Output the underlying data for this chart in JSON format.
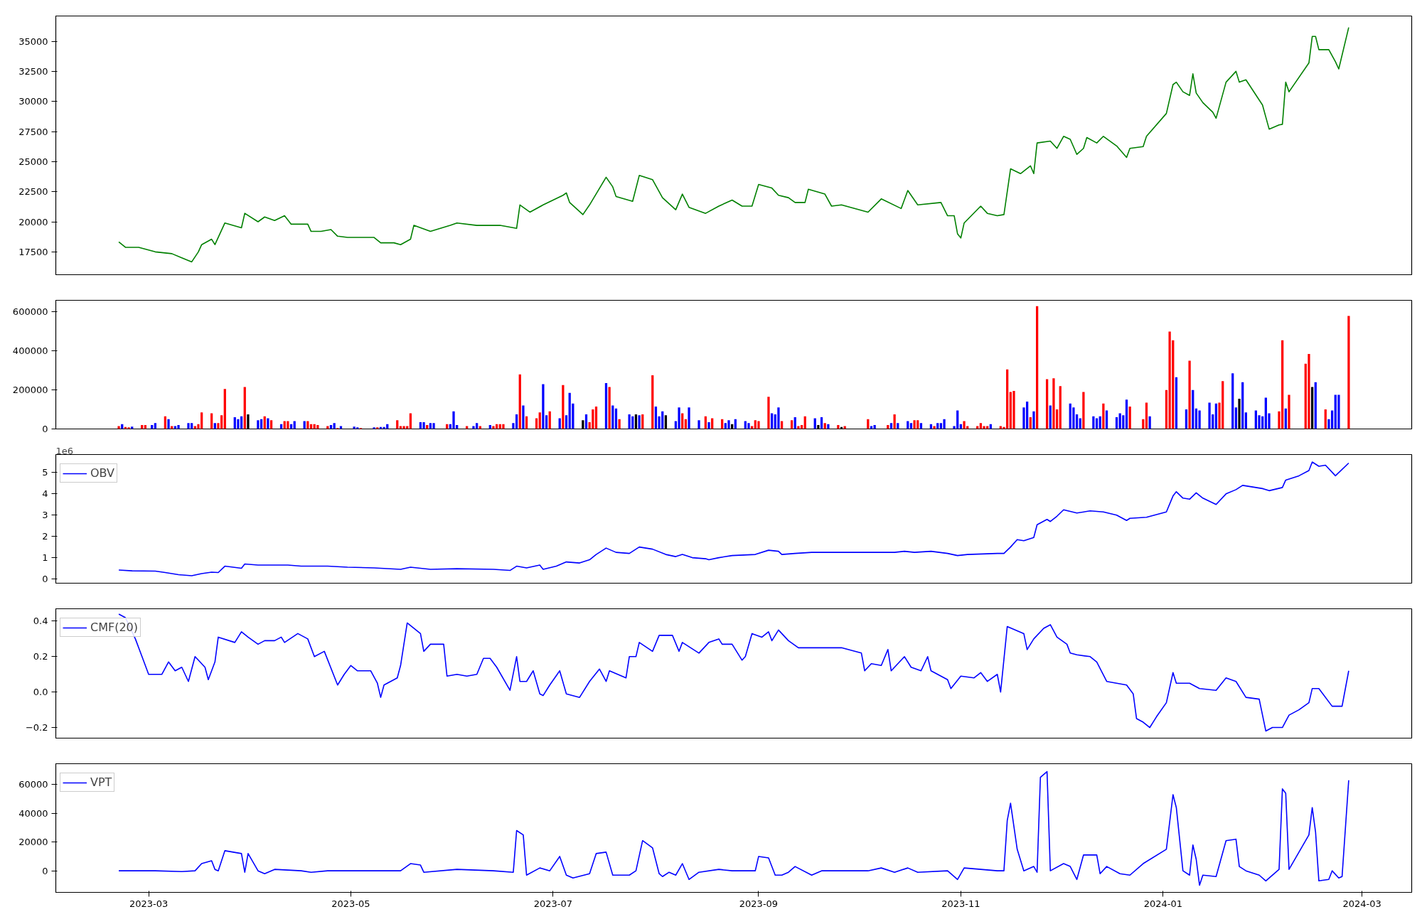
{
  "chart_data": [
    {
      "type": "line",
      "tick_labels": "y",
      "xlim": [
        "2023-02-01",
        "2024-03-16"
      ],
      "ylim": [
        15600,
        37100
      ],
      "yticks": [
        17500,
        20000,
        22500,
        25000,
        27500,
        30000,
        32500,
        35000
      ],
      "x": [
        "2023-02-20",
        "2023-02-22",
        "2023-02-26",
        "2023-03-03",
        "2023-03-08",
        "2023-03-11",
        "2023-03-14",
        "2023-03-16",
        "2023-03-17",
        "2023-03-20",
        "2023-03-21",
        "2023-03-24",
        "2023-03-29",
        "2023-03-30",
        "2023-04-03",
        "2023-04-05",
        "2023-04-08",
        "2023-04-11",
        "2023-04-13",
        "2023-04-18",
        "2023-04-19",
        "2023-04-22",
        "2023-04-25",
        "2023-04-27",
        "2023-04-30",
        "2023-05-08",
        "2023-05-10",
        "2023-05-14",
        "2023-05-16",
        "2023-05-19",
        "2023-05-20",
        "2023-05-25",
        "2023-05-31",
        "2023-06-02",
        "2023-06-08",
        "2023-06-15",
        "2023-06-20",
        "2023-06-21",
        "2023-06-24",
        "2023-06-28",
        "2023-07-04",
        "2023-07-05",
        "2023-07-06",
        "2023-07-10",
        "2023-07-12",
        "2023-07-17",
        "2023-07-19",
        "2023-07-20",
        "2023-07-25",
        "2023-07-27",
        "2023-07-31",
        "2023-08-03",
        "2023-08-07",
        "2023-08-09",
        "2023-08-11",
        "2023-08-16",
        "2023-08-20",
        "2023-08-24",
        "2023-08-27",
        "2023-08-30",
        "2023-09-01",
        "2023-09-05",
        "2023-09-07",
        "2023-09-10",
        "2023-09-12",
        "2023-09-15",
        "2023-09-16",
        "2023-09-21",
        "2023-09-23",
        "2023-09-26",
        "2023-10-04",
        "2023-10-08",
        "2023-10-14",
        "2023-10-16",
        "2023-10-19",
        "2023-10-26",
        "2023-10-28",
        "2023-10-30",
        "2023-10-31",
        "2023-11-01",
        "2023-11-02",
        "2023-11-07",
        "2023-11-09",
        "2023-11-12",
        "2023-11-14",
        "2023-11-16",
        "2023-11-19",
        "2023-11-22",
        "2023-11-23",
        "2023-11-24",
        "2023-11-28",
        "2023-11-30",
        "2023-12-02",
        "2023-12-04",
        "2023-12-06",
        "2023-12-08",
        "2023-12-09",
        "2023-12-12",
        "2023-12-14",
        "2023-12-18",
        "2023-12-21",
        "2023-12-22",
        "2023-12-26",
        "2023-12-27",
        "2024-01-02",
        "2024-01-04",
        "2024-01-05",
        "2024-01-07",
        "2024-01-09",
        "2024-01-10",
        "2024-01-11",
        "2024-01-13",
        "2024-01-16",
        "2024-01-17",
        "2024-01-20",
        "2024-01-23",
        "2024-01-24",
        "2024-01-26",
        "2024-01-31",
        "2024-02-02",
        "2024-02-05",
        "2024-02-06",
        "2024-02-07",
        "2024-02-08",
        "2024-02-14",
        "2024-02-15",
        "2024-02-16",
        "2024-02-17",
        "2024-02-20",
        "2024-02-22",
        "2024-02-23",
        "2024-02-26"
      ],
      "series": [
        {
          "color": "#008000",
          "values": [
            18330,
            17880,
            17870,
            17500,
            17350,
            17000,
            16670,
            17500,
            18100,
            18550,
            18100,
            19900,
            19500,
            20700,
            20000,
            20400,
            20100,
            20500,
            19800,
            19800,
            19200,
            19200,
            19350,
            18800,
            18700,
            18700,
            18250,
            18250,
            18100,
            18550,
            19700,
            19200,
            19700,
            19900,
            19700,
            19700,
            19450,
            21400,
            20800,
            21400,
            22200,
            22400,
            21600,
            20600,
            21400,
            23700,
            22900,
            22100,
            21700,
            23850,
            23500,
            22000,
            21000,
            22300,
            21200,
            20700,
            21300,
            21800,
            21300,
            21300,
            23100,
            22800,
            22200,
            22000,
            21600,
            21600,
            22700,
            22300,
            21300,
            21400,
            20800,
            21900,
            21100,
            22600,
            21400,
            21600,
            20500,
            20500,
            19000,
            18650,
            19900,
            21300,
            20700,
            20500,
            20600,
            24400,
            24000,
            24650,
            24000,
            26550,
            26700,
            26100,
            27100,
            26850,
            25600,
            26100,
            27000,
            26550,
            27100,
            26300,
            25350,
            26100,
            26250,
            27100,
            29000,
            31400,
            31600,
            30800,
            30500,
            32300,
            30700,
            29900,
            29100,
            28600,
            31600,
            32500,
            31600,
            31800,
            29700,
            27700,
            28050,
            28100,
            31600,
            30800,
            33200,
            35400,
            35400,
            34300,
            34300,
            33300,
            32700,
            36150
          ]
        }
      ]
    },
    {
      "type": "bar",
      "tick_labels": "y",
      "xlim": [
        "2023-02-01",
        "2024-03-16"
      ],
      "ylim": [
        0,
        660000
      ],
      "yticks": [
        0,
        200000,
        400000,
        600000
      ],
      "x": [
        "2023-02-20",
        "2023-02-21",
        "2023-02-22",
        "2023-02-23",
        "2023-02-24",
        "2023-02-27",
        "2023-02-28",
        "2023-03-02",
        "2023-03-03",
        "2023-03-06",
        "2023-03-07",
        "2023-03-08",
        "2023-03-09",
        "2023-03-10",
        "2023-03-13",
        "2023-03-14",
        "2023-03-15",
        "2023-03-16",
        "2023-03-17",
        "2023-03-20",
        "2023-03-21",
        "2023-03-22",
        "2023-03-23",
        "2023-03-24",
        "2023-03-27",
        "2023-03-28",
        "2023-03-29",
        "2023-03-30",
        "2023-03-31",
        "2023-04-03",
        "2023-04-04",
        "2023-04-05",
        "2023-04-06",
        "2023-04-07",
        "2023-04-10",
        "2023-04-11",
        "2023-04-12",
        "2023-04-13",
        "2023-04-14",
        "2023-04-17",
        "2023-04-18",
        "2023-04-19",
        "2023-04-20",
        "2023-04-21",
        "2023-04-24",
        "2023-04-25",
        "2023-04-26",
        "2023-04-27",
        "2023-04-28",
        "2023-05-02",
        "2023-05-03",
        "2023-05-04",
        "2023-05-08",
        "2023-05-09",
        "2023-05-10",
        "2023-05-11",
        "2023-05-12",
        "2023-05-15",
        "2023-05-16",
        "2023-05-17",
        "2023-05-18",
        "2023-05-19",
        "2023-05-22",
        "2023-05-23",
        "2023-05-24",
        "2023-05-25",
        "2023-05-26",
        "2023-05-30",
        "2023-05-31",
        "2023-06-01",
        "2023-06-02",
        "2023-06-05",
        "2023-06-07",
        "2023-06-08",
        "2023-06-09",
        "2023-06-12",
        "2023-06-13",
        "2023-06-14",
        "2023-06-15",
        "2023-06-16",
        "2023-06-19",
        "2023-06-20",
        "2023-06-21",
        "2023-06-22",
        "2023-06-23",
        "2023-06-26",
        "2023-06-27",
        "2023-06-28",
        "2023-06-29",
        "2023-06-30",
        "2023-07-03",
        "2023-07-04",
        "2023-07-05",
        "2023-07-06",
        "2023-07-07",
        "2023-07-10",
        "2023-07-11",
        "2023-07-12",
        "2023-07-13",
        "2023-07-14",
        "2023-07-17",
        "2023-07-18",
        "2023-07-19",
        "2023-07-20",
        "2023-07-21",
        "2023-07-24",
        "2023-07-25",
        "2023-07-26",
        "2023-07-27",
        "2023-07-28",
        "2023-07-31",
        "2023-08-01",
        "2023-08-02",
        "2023-08-03",
        "2023-08-04",
        "2023-08-07",
        "2023-08-08",
        "2023-08-09",
        "2023-08-10",
        "2023-08-11",
        "2023-08-14",
        "2023-08-16",
        "2023-08-17",
        "2023-08-18",
        "2023-08-21",
        "2023-08-22",
        "2023-08-23",
        "2023-08-24",
        "2023-08-25",
        "2023-08-28",
        "2023-08-29",
        "2023-08-30",
        "2023-08-31",
        "2023-09-01",
        "2023-09-04",
        "2023-09-05",
        "2023-09-06",
        "2023-09-07",
        "2023-09-08",
        "2023-09-11",
        "2023-09-12",
        "2023-09-13",
        "2023-09-14",
        "2023-09-15",
        "2023-09-18",
        "2023-09-19",
        "2023-09-20",
        "2023-09-21",
        "2023-09-22",
        "2023-09-25",
        "2023-09-26",
        "2023-09-27",
        "2023-10-04",
        "2023-10-05",
        "2023-10-06",
        "2023-10-10",
        "2023-10-11",
        "2023-10-12",
        "2023-10-13",
        "2023-10-16",
        "2023-10-17",
        "2023-10-18",
        "2023-10-19",
        "2023-10-20",
        "2023-10-23",
        "2023-10-24",
        "2023-10-25",
        "2023-10-26",
        "2023-10-27",
        "2023-10-30",
        "2023-10-31",
        "2023-11-01",
        "2023-11-02",
        "2023-11-03",
        "2023-11-06",
        "2023-11-07",
        "2023-11-08",
        "2023-11-09",
        "2023-11-10",
        "2023-11-13",
        "2023-11-14",
        "2023-11-15",
        "2023-11-16",
        "2023-11-17",
        "2023-11-20",
        "2023-11-21",
        "2023-11-22",
        "2023-11-23",
        "2023-11-24",
        "2023-11-27",
        "2023-11-28",
        "2023-11-29",
        "2023-11-30",
        "2023-12-01",
        "2023-12-04",
        "2023-12-05",
        "2023-12-06",
        "2023-12-07",
        "2023-12-08",
        "2023-12-11",
        "2023-12-12",
        "2023-12-13",
        "2023-12-14",
        "2023-12-15",
        "2023-12-18",
        "2023-12-19",
        "2023-12-20",
        "2023-12-21",
        "2023-12-22",
        "2023-12-26",
        "2023-12-27",
        "2023-12-28",
        "2024-01-02",
        "2024-01-03",
        "2024-01-04",
        "2024-01-05",
        "2024-01-08",
        "2024-01-09",
        "2024-01-10",
        "2024-01-11",
        "2024-01-12",
        "2024-01-15",
        "2024-01-16",
        "2024-01-17",
        "2024-01-18",
        "2024-01-19",
        "2024-01-22",
        "2024-01-23",
        "2024-01-24",
        "2024-01-25",
        "2024-01-26",
        "2024-01-29",
        "2024-01-30",
        "2024-01-31",
        "2024-02-01",
        "2024-02-02",
        "2024-02-05",
        "2024-02-06",
        "2024-02-07",
        "2024-02-08",
        "2024-02-13",
        "2024-02-14",
        "2024-02-15",
        "2024-02-16",
        "2024-02-19",
        "2024-02-20",
        "2024-02-21",
        "2024-02-22",
        "2024-02-23",
        "2024-02-26"
      ],
      "values": [
        15000,
        25000,
        10000,
        8000,
        12000,
        20000,
        20000,
        20000,
        30000,
        65000,
        50000,
        15000,
        15000,
        20000,
        30000,
        30000,
        15000,
        25000,
        85000,
        80000,
        30000,
        30000,
        70000,
        205000,
        60000,
        50000,
        65000,
        215000,
        75000,
        45000,
        50000,
        65000,
        55000,
        45000,
        25000,
        40000,
        40000,
        25000,
        40000,
        40000,
        40000,
        25000,
        25000,
        20000,
        15000,
        20000,
        30000,
        5000,
        15000,
        12000,
        8000,
        5000,
        8000,
        8000,
        10000,
        10000,
        25000,
        45000,
        15000,
        15000,
        15000,
        80000,
        35000,
        35000,
        20000,
        30000,
        30000,
        25000,
        25000,
        90000,
        20000,
        15000,
        15000,
        30000,
        15000,
        20000,
        15000,
        25000,
        25000,
        25000,
        30000,
        75000,
        280000,
        120000,
        65000,
        55000,
        85000,
        230000,
        70000,
        90000,
        55000,
        225000,
        70000,
        185000,
        130000,
        45000,
        75000,
        35000,
        100000,
        115000,
        235000,
        215000,
        120000,
        105000,
        50000,
        75000,
        65000,
        75000,
        70000,
        75000,
        275000,
        115000,
        65000,
        90000,
        70000,
        40000,
        110000,
        80000,
        50000,
        110000,
        45000,
        65000,
        35000,
        55000,
        50000,
        30000,
        45000,
        25000,
        50000,
        40000,
        30000,
        15000,
        45000,
        40000,
        165000,
        80000,
        75000,
        110000,
        40000,
        45000,
        60000,
        15000,
        20000,
        65000,
        55000,
        20000,
        60000,
        30000,
        25000,
        20000,
        10000,
        15000,
        50000,
        15000,
        20000,
        20000,
        30000,
        75000,
        30000,
        40000,
        30000,
        45000,
        45000,
        30000,
        25000,
        15000,
        30000,
        30000,
        50000,
        15000,
        95000,
        25000,
        40000,
        15000,
        15000,
        30000,
        15000,
        15000,
        25000,
        15000,
        10000,
        305000,
        190000,
        195000,
        110000,
        140000,
        60000,
        90000,
        630000,
        255000,
        120000,
        260000,
        100000,
        220000,
        130000,
        110000,
        75000,
        55000,
        190000,
        65000,
        55000,
        65000,
        130000,
        95000,
        60000,
        80000,
        70000,
        150000,
        115000,
        50000,
        135000,
        65000,
        200000,
        500000,
        455000,
        265000,
        100000,
        350000,
        200000,
        105000,
        95000,
        135000,
        75000,
        130000,
        135000,
        245000,
        285000,
        110000,
        155000,
        240000,
        85000,
        95000,
        70000,
        65000,
        160000,
        80000,
        90000,
        455000,
        105000,
        175000,
        335000,
        385000,
        215000,
        240000,
        100000,
        50000,
        95000,
        175000,
        175000,
        580000
      ],
      "colors": [
        "#ff0000",
        "#0000ff",
        "#ff0000",
        "#ff0000",
        "#0000ff",
        "#ff0000",
        "#ff0000",
        "#0000ff",
        "#0000ff",
        "#ff0000",
        "#0000ff",
        "#ff0000",
        "#0000ff",
        "#0000ff",
        "#0000ff",
        "#0000ff",
        "#ff0000",
        "#ff0000",
        "#ff0000",
        "#ff0000",
        "#0000ff",
        "#ff0000",
        "#ff0000",
        "#ff0000",
        "#0000ff",
        "#0000ff",
        "#0000ff",
        "#ff0000",
        "#000000",
        "#0000ff",
        "#0000ff",
        "#ff0000",
        "#0000ff",
        "#ff0000",
        "#0000ff",
        "#ff0000",
        "#ff0000",
        "#0000ff",
        "#0000ff",
        "#0000ff",
        "#ff0000",
        "#ff0000",
        "#ff0000",
        "#ff0000",
        "#ff0000",
        "#0000ff",
        "#0000ff",
        "#ff0000",
        "#0000ff",
        "#0000ff",
        "#0000ff",
        "#ff0000",
        "#0000ff",
        "#ff0000",
        "#0000ff",
        "#0000ff",
        "#0000ff",
        "#ff0000",
        "#ff0000",
        "#ff0000",
        "#ff0000",
        "#ff0000",
        "#0000ff",
        "#0000ff",
        "#ff0000",
        "#0000ff",
        "#0000ff",
        "#ff0000",
        "#0000ff",
        "#0000ff",
        "#0000ff",
        "#ff0000",
        "#0000ff",
        "#0000ff",
        "#ff0000",
        "#0000ff",
        "#ff0000",
        "#ff0000",
        "#ff0000",
        "#ff0000",
        "#0000ff",
        "#0000ff",
        "#ff0000",
        "#0000ff",
        "#ff0000",
        "#ff0000",
        "#ff0000",
        "#0000ff",
        "#0000ff",
        "#ff0000",
        "#0000ff",
        "#ff0000",
        "#0000ff",
        "#0000ff",
        "#0000ff",
        "#000000",
        "#0000ff",
        "#ff0000",
        "#ff0000",
        "#ff0000",
        "#0000ff",
        "#ff0000",
        "#0000ff",
        "#0000ff",
        "#ff0000",
        "#0000ff",
        "#0000ff",
        "#000000",
        "#0000ff",
        "#ff0000",
        "#ff0000",
        "#0000ff",
        "#0000ff",
        "#0000ff",
        "#000000",
        "#0000ff",
        "#0000ff",
        "#ff0000",
        "#ff0000",
        "#0000ff",
        "#0000ff",
        "#ff0000",
        "#0000ff",
        "#ff0000",
        "#ff0000",
        "#0000ff",
        "#0000ff",
        "#000000",
        "#0000ff",
        "#0000ff",
        "#0000ff",
        "#ff0000",
        "#ff0000",
        "#ff0000",
        "#ff0000",
        "#0000ff",
        "#0000ff",
        "#0000ff",
        "#ff0000",
        "#ff0000",
        "#0000ff",
        "#ff0000",
        "#ff0000",
        "#ff0000",
        "#0000ff",
        "#000000",
        "#0000ff",
        "#ff0000",
        "#0000ff",
        "#ff0000",
        "#000000",
        "#ff0000",
        "#ff0000",
        "#0000ff",
        "#0000ff",
        "#ff0000",
        "#0000ff",
        "#ff0000",
        "#0000ff",
        "#0000ff",
        "#0000ff",
        "#ff0000",
        "#ff0000",
        "#0000ff",
        "#0000ff",
        "#ff0000",
        "#0000ff",
        "#0000ff",
        "#0000ff",
        "#0000ff",
        "#0000ff",
        "#0000ff",
        "#ff0000",
        "#ff0000",
        "#ff0000",
        "#ff0000",
        "#ff0000",
        "#ff0000",
        "#0000ff",
        "#ff0000",
        "#ff0000",
        "#ff0000",
        "#ff0000",
        "#ff0000",
        "#0000ff",
        "#0000ff",
        "#ff0000",
        "#0000ff",
        "#ff0000",
        "#ff0000",
        "#0000ff",
        "#ff0000",
        "#ff0000",
        "#ff0000",
        "#0000ff",
        "#0000ff",
        "#0000ff",
        "#0000ff",
        "#ff0000",
        "#0000ff",
        "#0000ff",
        "#0000ff",
        "#ff0000",
        "#0000ff",
        "#0000ff",
        "#0000ff",
        "#0000ff",
        "#0000ff",
        "#ff0000",
        "#ff0000",
        "#ff0000",
        "#0000ff",
        "#ff0000",
        "#ff0000",
        "#ff0000",
        "#0000ff",
        "#0000ff",
        "#ff0000",
        "#0000ff",
        "#0000ff",
        "#0000ff",
        "#0000ff",
        "#0000ff",
        "#0000ff",
        "#ff0000",
        "#ff0000",
        "#0000ff",
        "#0000ff",
        "#000000",
        "#0000ff",
        "#0000ff",
        "#0000ff",
        "#0000ff",
        "#0000ff",
        "#0000ff",
        "#0000ff",
        "#ff0000",
        "#ff0000",
        "#0000ff",
        "#ff0000",
        "#ff0000",
        "#ff0000",
        "#000000",
        "#0000ff",
        "#ff0000",
        "#0000ff",
        "#0000ff",
        "#0000ff",
        "#0000ff",
        "#ff0000"
      ]
    },
    {
      "type": "line",
      "tick_labels": "y",
      "legend": "top left",
      "annotations": [
        "1e6"
      ],
      "xlim": [
        "2023-02-01",
        "2024-03-16"
      ],
      "ylim": [
        -0.2,
        5.85
      ],
      "yticks": [
        0,
        1,
        2,
        3,
        4,
        5
      ],
      "x": [
        "2023-02-20",
        "2023-02-24",
        "2023-03-03",
        "2023-03-06",
        "2023-03-10",
        "2023-03-14",
        "2023-03-17",
        "2023-03-20",
        "2023-03-22",
        "2023-03-24",
        "2023-03-29",
        "2023-03-30",
        "2023-04-03",
        "2023-04-07",
        "2023-04-12",
        "2023-04-16",
        "2023-04-24",
        "2023-04-30",
        "2023-05-08",
        "2023-05-16",
        "2023-05-19",
        "2023-05-25",
        "2023-06-02",
        "2023-06-13",
        "2023-06-18",
        "2023-06-20",
        "2023-06-23",
        "2023-06-27",
        "2023-06-28",
        "2023-07-02",
        "2023-07-05",
        "2023-07-09",
        "2023-07-12",
        "2023-07-14",
        "2023-07-17",
        "2023-07-20",
        "2023-07-24",
        "2023-07-27",
        "2023-07-31",
        "2023-08-04",
        "2023-08-07",
        "2023-08-09",
        "2023-08-12",
        "2023-08-16",
        "2023-08-17",
        "2023-08-20",
        "2023-08-24",
        "2023-08-31",
        "2023-09-04",
        "2023-09-07",
        "2023-09-08",
        "2023-09-12",
        "2023-09-17",
        "2023-09-26",
        "2023-10-04",
        "2023-10-12",
        "2023-10-15",
        "2023-10-18",
        "2023-10-23",
        "2023-10-28",
        "2023-10-31",
        "2023-11-03",
        "2023-11-12",
        "2023-11-14",
        "2023-11-16",
        "2023-11-18",
        "2023-11-20",
        "2023-11-23",
        "2023-11-24",
        "2023-11-27",
        "2023-11-28",
        "2023-11-30",
        "2023-12-02",
        "2023-12-06",
        "2023-12-10",
        "2023-12-14",
        "2023-12-18",
        "2023-12-21",
        "2023-12-22",
        "2023-12-27",
        "2024-01-02",
        "2024-01-04",
        "2024-01-05",
        "2024-01-07",
        "2024-01-09",
        "2024-01-11",
        "2024-01-13",
        "2024-01-17",
        "2024-01-20",
        "2024-01-23",
        "2024-01-25",
        "2024-01-31",
        "2024-02-02",
        "2024-02-06",
        "2024-02-07",
        "2024-02-11",
        "2024-02-14",
        "2024-02-15",
        "2024-02-17",
        "2024-02-19",
        "2024-02-22",
        "2024-02-26"
      ],
      "series": [
        {
          "name": "OBV",
          "color": "#0000ff",
          "values": [
            0.42,
            0.38,
            0.37,
            0.3,
            0.2,
            0.15,
            0.25,
            0.32,
            0.3,
            0.6,
            0.5,
            0.7,
            0.65,
            0.65,
            0.65,
            0.6,
            0.6,
            0.55,
            0.52,
            0.45,
            0.55,
            0.45,
            0.48,
            0.45,
            0.4,
            0.6,
            0.52,
            0.65,
            0.45,
            0.6,
            0.8,
            0.75,
            0.9,
            1.15,
            1.45,
            1.25,
            1.2,
            1.5,
            1.4,
            1.15,
            1.05,
            1.15,
            1.0,
            0.95,
            0.9,
            1.0,
            1.1,
            1.15,
            1.35,
            1.3,
            1.15,
            1.2,
            1.25,
            1.25,
            1.25,
            1.25,
            1.3,
            1.25,
            1.3,
            1.2,
            1.1,
            1.15,
            1.2,
            1.2,
            1.5,
            1.85,
            1.8,
            1.95,
            2.55,
            2.8,
            2.7,
            2.95,
            3.25,
            3.1,
            3.2,
            3.15,
            3.0,
            2.75,
            2.85,
            2.9,
            3.15,
            3.9,
            4.1,
            3.8,
            3.75,
            4.05,
            3.8,
            3.5,
            4.0,
            4.2,
            4.4,
            4.25,
            4.15,
            4.3,
            4.65,
            4.85,
            5.1,
            5.5,
            5.3,
            5.35,
            4.85,
            5.45
          ]
        }
      ]
    },
    {
      "type": "line",
      "tick_labels": "y",
      "legend": "top left",
      "xlim": [
        "2023-02-01",
        "2024-03-16"
      ],
      "ylim": [
        -0.26,
        0.47
      ],
      "yticks": [
        {
          "value": -0.2,
          "label": "−0.2"
        },
        {
          "value": 0,
          "label": "0.0"
        },
        {
          "value": 0.2,
          "label": "0.2"
        },
        {
          "value": 0.4,
          "label": "0.4"
        }
      ],
      "x": [
        "2023-02-20",
        "2023-02-22",
        "2023-02-25",
        "2023-02-27",
        "2023-03-01",
        "2023-03-05",
        "2023-03-07",
        "2023-03-09",
        "2023-03-11",
        "2023-03-13",
        "2023-03-15",
        "2023-03-18",
        "2023-03-19",
        "2023-03-21",
        "2023-03-22",
        "2023-03-27",
        "2023-03-29",
        "2023-03-31",
        "2023-04-03",
        "2023-04-05",
        "2023-04-08",
        "2023-04-10",
        "2023-04-11",
        "2023-04-15",
        "2023-04-18",
        "2023-04-20",
        "2023-04-23",
        "2023-04-27",
        "2023-04-29",
        "2023-05-01",
        "2023-05-03",
        "2023-05-07",
        "2023-05-09",
        "2023-05-10",
        "2023-05-11",
        "2023-05-15",
        "2023-05-16",
        "2023-05-18",
        "2023-05-22",
        "2023-05-23",
        "2023-05-25",
        "2023-05-29",
        "2023-05-30",
        "2023-06-02",
        "2023-06-05",
        "2023-06-08",
        "2023-06-10",
        "2023-06-12",
        "2023-06-14",
        "2023-06-18",
        "2023-06-20",
        "2023-06-21",
        "2023-06-23",
        "2023-06-25",
        "2023-06-27",
        "2023-06-28",
        "2023-06-30",
        "2023-07-03",
        "2023-07-05",
        "2023-07-09",
        "2023-07-12",
        "2023-07-15",
        "2023-07-17",
        "2023-07-18",
        "2023-07-23",
        "2023-07-24",
        "2023-07-26",
        "2023-07-27",
        "2023-07-31",
        "2023-08-02",
        "2023-08-06",
        "2023-08-08",
        "2023-08-09",
        "2023-08-14",
        "2023-08-17",
        "2023-08-20",
        "2023-08-21",
        "2023-08-24",
        "2023-08-27",
        "2023-08-28",
        "2023-08-30",
        "2023-09-02",
        "2023-09-04",
        "2023-09-05",
        "2023-09-07",
        "2023-09-10",
        "2023-09-13",
        "2023-09-17",
        "2023-09-20",
        "2023-09-26",
        "2023-10-02",
        "2023-10-03",
        "2023-10-05",
        "2023-10-08",
        "2023-10-10",
        "2023-10-11",
        "2023-10-15",
        "2023-10-17",
        "2023-10-20",
        "2023-10-22",
        "2023-10-23",
        "2023-10-28",
        "2023-10-29",
        "2023-11-01",
        "2023-11-05",
        "2023-11-07",
        "2023-11-09",
        "2023-11-12",
        "2023-11-13",
        "2023-11-15",
        "2023-11-20",
        "2023-11-21",
        "2023-11-23",
        "2023-11-26",
        "2023-11-28",
        "2023-11-30",
        "2023-12-03",
        "2023-12-04",
        "2023-12-06",
        "2023-12-10",
        "2023-12-12",
        "2023-12-15",
        "2023-12-21",
        "2023-12-23",
        "2023-12-24",
        "2023-12-26",
        "2023-12-28",
        "2023-12-30",
        "2024-01-02",
        "2024-01-04",
        "2024-01-05",
        "2024-01-09",
        "2024-01-12",
        "2024-01-17",
        "2024-01-20",
        "2024-01-23",
        "2024-01-26",
        "2024-01-30",
        "2024-02-01",
        "2024-02-03",
        "2024-02-06",
        "2024-02-08",
        "2024-02-11",
        "2024-02-14",
        "2024-02-15",
        "2024-02-17",
        "2024-02-21",
        "2024-02-24",
        "2024-02-26"
      ],
      "series": [
        {
          "name": "CMF(20)",
          "color": "#0000ff",
          "values": [
            0.44,
            0.42,
            0.3,
            0.2,
            0.1,
            0.1,
            0.17,
            0.12,
            0.14,
            0.06,
            0.2,
            0.14,
            0.07,
            0.17,
            0.31,
            0.28,
            0.34,
            0.31,
            0.27,
            0.29,
            0.29,
            0.31,
            0.28,
            0.33,
            0.3,
            0.2,
            0.23,
            0.04,
            0.1,
            0.15,
            0.12,
            0.12,
            0.05,
            -0.03,
            0.04,
            0.08,
            0.15,
            0.39,
            0.33,
            0.23,
            0.27,
            0.27,
            0.09,
            0.1,
            0.09,
            0.1,
            0.19,
            0.19,
            0.14,
            0.01,
            0.2,
            0.06,
            0.06,
            0.12,
            -0.01,
            -0.02,
            0.04,
            0.12,
            -0.01,
            -0.03,
            0.06,
            0.13,
            0.06,
            0.12,
            0.08,
            0.2,
            0.2,
            0.28,
            0.23,
            0.32,
            0.32,
            0.23,
            0.28,
            0.22,
            0.28,
            0.3,
            0.27,
            0.27,
            0.18,
            0.2,
            0.33,
            0.31,
            0.34,
            0.29,
            0.35,
            0.29,
            0.25,
            0.25,
            0.25,
            0.25,
            0.22,
            0.12,
            0.16,
            0.15,
            0.24,
            0.12,
            0.2,
            0.14,
            0.12,
            0.2,
            0.12,
            0.07,
            0.02,
            0.09,
            0.08,
            0.11,
            0.06,
            0.1,
            0.0,
            0.37,
            0.33,
            0.24,
            0.3,
            0.36,
            0.38,
            0.31,
            0.27,
            0.22,
            0.21,
            0.2,
            0.17,
            0.06,
            0.04,
            -0.01,
            -0.15,
            -0.17,
            -0.2,
            -0.14,
            -0.06,
            0.11,
            0.05,
            0.05,
            0.02,
            0.01,
            0.08,
            0.06,
            -0.03,
            -0.04,
            -0.22,
            -0.2,
            -0.2,
            -0.13,
            -0.1,
            -0.06,
            0.02,
            0.02,
            -0.08,
            -0.08,
            0.12
          ]
        }
      ]
    },
    {
      "type": "line",
      "legend": "top left",
      "xlim": [
        "2023-02-01",
        "2024-03-16"
      ],
      "xticks": [
        {
          "value": "2023-03-01",
          "label": "2023-03"
        },
        {
          "value": "2023-05-01",
          "label": "2023-05"
        },
        {
          "value": "2023-07-01",
          "label": "2023-07"
        },
        {
          "value": "2023-09-01",
          "label": "2023-09"
        },
        {
          "value": "2023-11-01",
          "label": "2023-11"
        },
        {
          "value": "2024-01-01",
          "label": "2024-01"
        },
        {
          "value": "2024-03-01",
          "label": "2024-03"
        }
      ],
      "ylim": [
        -15000,
        74500
      ],
      "yticks": [
        0,
        20000,
        40000,
        60000
      ],
      "x": [
        "2023-02-20",
        "2023-02-24",
        "2023-03-03",
        "2023-03-11",
        "2023-03-15",
        "2023-03-17",
        "2023-03-20",
        "2023-03-21",
        "2023-03-22",
        "2023-03-24",
        "2023-03-29",
        "2023-03-30",
        "2023-03-31",
        "2023-04-03",
        "2023-04-05",
        "2023-04-08",
        "2023-04-16",
        "2023-04-19",
        "2023-04-24",
        "2023-05-05",
        "2023-05-16",
        "2023-05-19",
        "2023-05-22",
        "2023-05-23",
        "2023-06-02",
        "2023-06-13",
        "2023-06-19",
        "2023-06-20",
        "2023-06-22",
        "2023-06-23",
        "2023-06-27",
        "2023-06-30",
        "2023-07-03",
        "2023-07-05",
        "2023-07-07",
        "2023-07-12",
        "2023-07-14",
        "2023-07-17",
        "2023-07-19",
        "2023-07-24",
        "2023-07-26",
        "2023-07-28",
        "2023-07-31",
        "2023-08-02",
        "2023-08-03",
        "2023-08-05",
        "2023-08-07",
        "2023-08-09",
        "2023-08-11",
        "2023-08-14",
        "2023-08-20",
        "2023-08-24",
        "2023-08-31",
        "2023-09-01",
        "2023-09-04",
        "2023-09-06",
        "2023-09-08",
        "2023-09-10",
        "2023-09-12",
        "2023-09-17",
        "2023-09-20",
        "2023-10-04",
        "2023-10-08",
        "2023-10-12",
        "2023-10-16",
        "2023-10-19",
        "2023-10-28",
        "2023-10-31",
        "2023-11-02",
        "2023-11-07",
        "2023-11-12",
        "2023-11-14",
        "2023-11-15",
        "2023-11-16",
        "2023-11-18",
        "2023-11-20",
        "2023-11-23",
        "2023-11-24",
        "2023-11-25",
        "2023-11-27",
        "2023-11-28",
        "2023-12-02",
        "2023-12-04",
        "2023-12-06",
        "2023-12-08",
        "2023-12-12",
        "2023-12-13",
        "2023-12-15",
        "2023-12-19",
        "2023-12-22",
        "2023-12-26",
        "2024-01-02",
        "2024-01-04",
        "2024-01-05",
        "2024-01-07",
        "2024-01-09",
        "2024-01-10",
        "2024-01-11",
        "2024-01-12",
        "2024-01-13",
        "2024-01-17",
        "2024-01-20",
        "2024-01-23",
        "2024-01-24",
        "2024-01-26",
        "2024-01-30",
        "2024-02-01",
        "2024-02-05",
        "2024-02-06",
        "2024-02-07",
        "2024-02-08",
        "2024-02-14",
        "2024-02-15",
        "2024-02-16",
        "2024-02-17",
        "2024-02-20",
        "2024-02-21",
        "2024-02-23",
        "2024-02-24",
        "2024-02-26"
      ],
      "series": [
        {
          "name": "VPT",
          "color": "#0000ff",
          "values": [
            0,
            0,
            0,
            -500,
            0,
            5000,
            7000,
            1000,
            0,
            14000,
            12000,
            -1000,
            12000,
            0,
            -2000,
            1000,
            0,
            -1000,
            0,
            0,
            0,
            5000,
            4000,
            -1000,
            1000,
            0,
            -1000,
            28000,
            25000,
            -3000,
            2000,
            0,
            10000,
            -3000,
            -5000,
            -2000,
            12000,
            13000,
            -3000,
            -3000,
            0,
            21000,
            16000,
            -2000,
            -4000,
            -1000,
            -3000,
            5000,
            -6000,
            -1000,
            1000,
            0,
            0,
            10000,
            9000,
            -3000,
            -3000,
            -1000,
            3000,
            -3000,
            0,
            0,
            2000,
            -1000,
            2000,
            -1000,
            0,
            -6000,
            2000,
            1000,
            0,
            0,
            35000,
            47000,
            15000,
            0,
            3000,
            -1000,
            65000,
            69000,
            0,
            5000,
            3000,
            -6000,
            11000,
            11000,
            -2000,
            3000,
            -2000,
            -3000,
            5000,
            15000,
            53000,
            44000,
            0,
            -3000,
            18000,
            8000,
            -10000,
            -3000,
            -4000,
            21000,
            22000,
            3000,
            0,
            -3000,
            -7000,
            1000,
            57000,
            54000,
            1000,
            25000,
            44000,
            27000,
            -7000,
            -6000,
            0,
            -5000,
            -4000,
            63000
          ]
        }
      ]
    }
  ]
}
